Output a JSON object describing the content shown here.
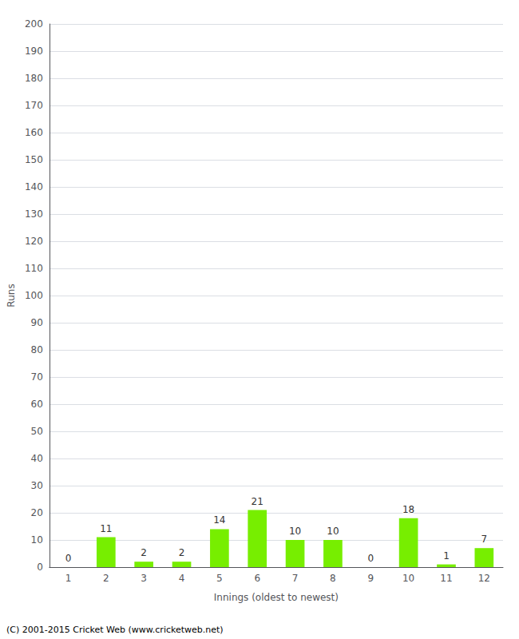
{
  "chart_data": {
    "type": "bar",
    "xlabel": "Innings (oldest to newest)",
    "ylabel": "Runs",
    "categories": [
      "1",
      "2",
      "3",
      "4",
      "5",
      "6",
      "7",
      "8",
      "9",
      "10",
      "11",
      "12"
    ],
    "values": [
      0,
      11,
      2,
      2,
      14,
      21,
      10,
      10,
      0,
      18,
      1,
      7
    ],
    "color": "#77ee00",
    "ylim": [
      0,
      200
    ],
    "yticks": [
      0,
      10,
      20,
      30,
      40,
      50,
      60,
      70,
      80,
      90,
      100,
      110,
      120,
      130,
      140,
      150,
      160,
      170,
      180,
      190,
      200
    ],
    "grid": true,
    "data_labels": true,
    "annotations": [
      "(C) 2001-2015 Cricket Web (www.cricketweb.net)"
    ]
  }
}
